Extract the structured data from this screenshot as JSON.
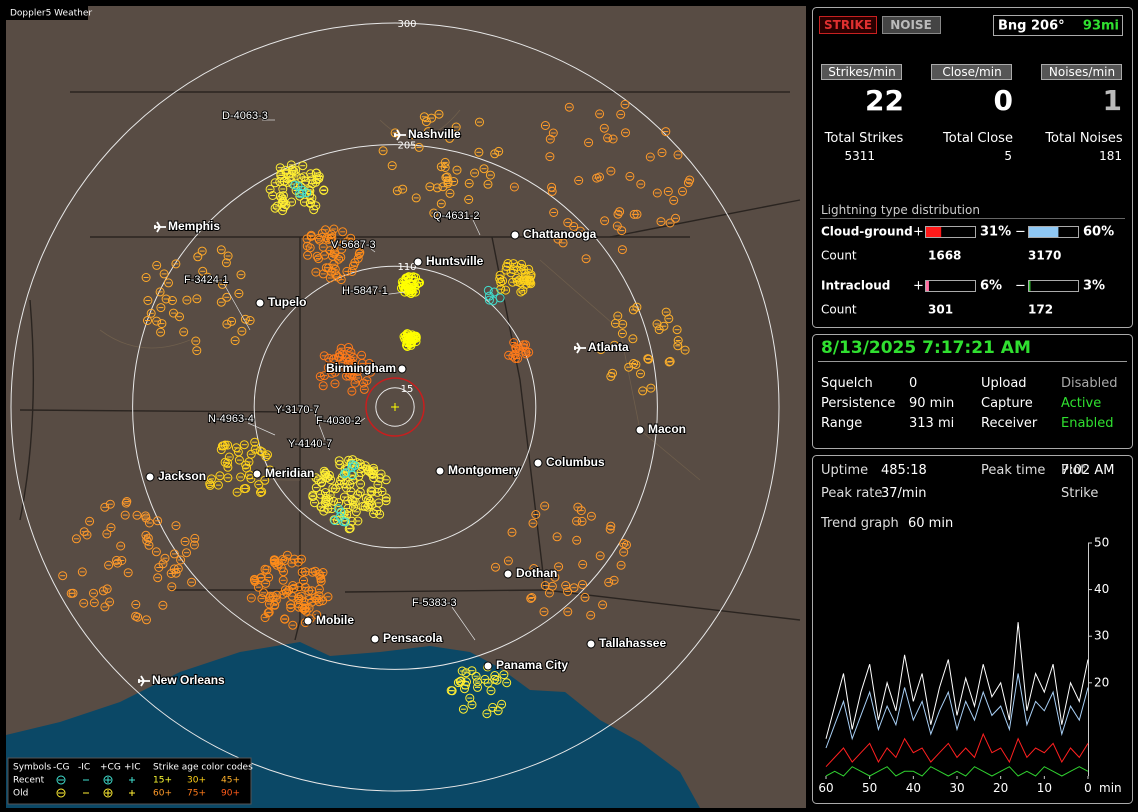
{
  "map": {
    "title": "Doppler5 Weather",
    "ring_labels": [
      300,
      205,
      110,
      15
    ],
    "cities": [
      "Nashville",
      "Memphis",
      "Chattanooga",
      "Huntsville",
      "Tupelo",
      "Birmingham",
      "Atlanta",
      "Macon",
      "Jackson",
      "Meridian",
      "Montgomery",
      "Columbus",
      "Dothan",
      "Mobile",
      "Pensacola",
      "Tallahassee",
      "Panama City",
      "New Orleans"
    ],
    "storms": [
      "D-4063-3",
      "Q-4631-2",
      "V-5687-3",
      "F-3424-1",
      "H-5847-1",
      "Y-3170-7",
      "N-4963-4",
      "F-4030-2",
      "Y-4140-7",
      "F-5383-3"
    ],
    "legend": {
      "symbols_label": "Symbols",
      "columns": [
        "-CG",
        "-IC",
        "+CG",
        "+IC"
      ],
      "age_label": "Strike age color codes",
      "rows": [
        "Recent",
        "Old"
      ],
      "recent_ages": [
        "15+",
        "30+",
        "45+"
      ],
      "old_ages": [
        "60+",
        "75+",
        "90+"
      ]
    }
  },
  "status": {
    "strike_button": "STRIKE",
    "noise_button": "NOISE",
    "bearing": "Bng 206°",
    "distance": "93mi",
    "rates": [
      {
        "label": "Strikes/min",
        "value": "22",
        "total_label": "Total Strikes",
        "total": "5311"
      },
      {
        "label": "Close/min",
        "value": "0",
        "total_label": "Total Close",
        "total": "5"
      },
      {
        "label": "Noises/min",
        "value": "1",
        "total_label": "Total Noises",
        "total": "181"
      }
    ],
    "distribution": {
      "title": "Lightning type distribution",
      "plus_sign": "+",
      "minus_sign": "−",
      "count_label": "Count",
      "rows": [
        {
          "name": "Cloud-ground",
          "plus": {
            "value": 31,
            "label": "31%"
          },
          "minus": {
            "value": 60,
            "label": "60%"
          },
          "plus_count": "1668",
          "minus_count": "3170"
        },
        {
          "name": "Intracloud",
          "plus": {
            "value": 6,
            "label": "6%"
          },
          "minus": {
            "value": 3,
            "label": "3%"
          },
          "plus_count": "301",
          "minus_count": "172"
        }
      ]
    }
  },
  "settings": {
    "datetime": "8/13/2025 7:17:21 AM",
    "rows": [
      [
        {
          "label": "Squelch",
          "value": "0"
        },
        {
          "label": "Upload",
          "value": "Disabled"
        }
      ],
      [
        {
          "label": "Persistence",
          "value": "90 min"
        },
        {
          "label": "Capture",
          "value": "Active"
        }
      ],
      [
        {
          "label": "Range",
          "value": "313 mi"
        },
        {
          "label": "Receiver",
          "value": "Enabled"
        }
      ]
    ]
  },
  "stats": {
    "rows": [
      [
        {
          "label": "Uptime",
          "value": "485:18"
        },
        {
          "label": "Peak time",
          "value": "7:02 AM"
        },
        {
          "label": "Plot"
        }
      ],
      [
        {
          "label": "Peak rate",
          "value": "37/min"
        },
        {
          "label": "Strike"
        }
      ]
    ],
    "trend_label": "Trend graph",
    "trend_window": "60 min"
  },
  "chart_data": {
    "type": "line",
    "x": [
      60,
      58,
      56,
      54,
      52,
      50,
      48,
      46,
      44,
      42,
      40,
      38,
      36,
      34,
      32,
      30,
      28,
      26,
      24,
      22,
      20,
      18,
      16,
      14,
      12,
      10,
      8,
      6,
      4,
      2,
      0
    ],
    "xlim": [
      60,
      0
    ],
    "xticks": [
      60,
      50,
      40,
      30,
      20,
      10,
      0
    ],
    "x_unit": "min",
    "ylim": [
      0,
      50
    ],
    "yticks": [
      20,
      30,
      40,
      50
    ],
    "series": [
      {
        "color": "#ffffff",
        "values": [
          8,
          15,
          22,
          10,
          18,
          24,
          12,
          20,
          14,
          26,
          16,
          22,
          11,
          19,
          25,
          13,
          21,
          15,
          24,
          17,
          20,
          12,
          33,
          14,
          22,
          18,
          24,
          11,
          20,
          16,
          25
        ]
      },
      {
        "color": "#a8cff5",
        "values": [
          6,
          11,
          16,
          8,
          13,
          18,
          10,
          15,
          11,
          19,
          12,
          16,
          9,
          14,
          18,
          10,
          16,
          12,
          18,
          13,
          15,
          10,
          22,
          11,
          16,
          14,
          18,
          9,
          15,
          12,
          19
        ]
      },
      {
        "color": "#ff2020",
        "values": [
          2,
          4,
          6,
          3,
          5,
          7,
          3,
          6,
          4,
          8,
          5,
          6,
          3,
          5,
          7,
          4,
          6,
          4,
          9,
          5,
          6,
          3,
          8,
          4,
          6,
          5,
          7,
          3,
          6,
          4,
          7
        ]
      },
      {
        "color": "#30d030",
        "values": [
          0,
          1,
          0,
          2,
          1,
          0,
          1,
          2,
          0,
          1,
          1,
          0,
          2,
          1,
          0,
          1,
          0,
          2,
          1,
          0,
          1,
          2,
          0,
          1,
          0,
          2,
          1,
          0,
          1,
          2,
          1
        ]
      }
    ]
  }
}
